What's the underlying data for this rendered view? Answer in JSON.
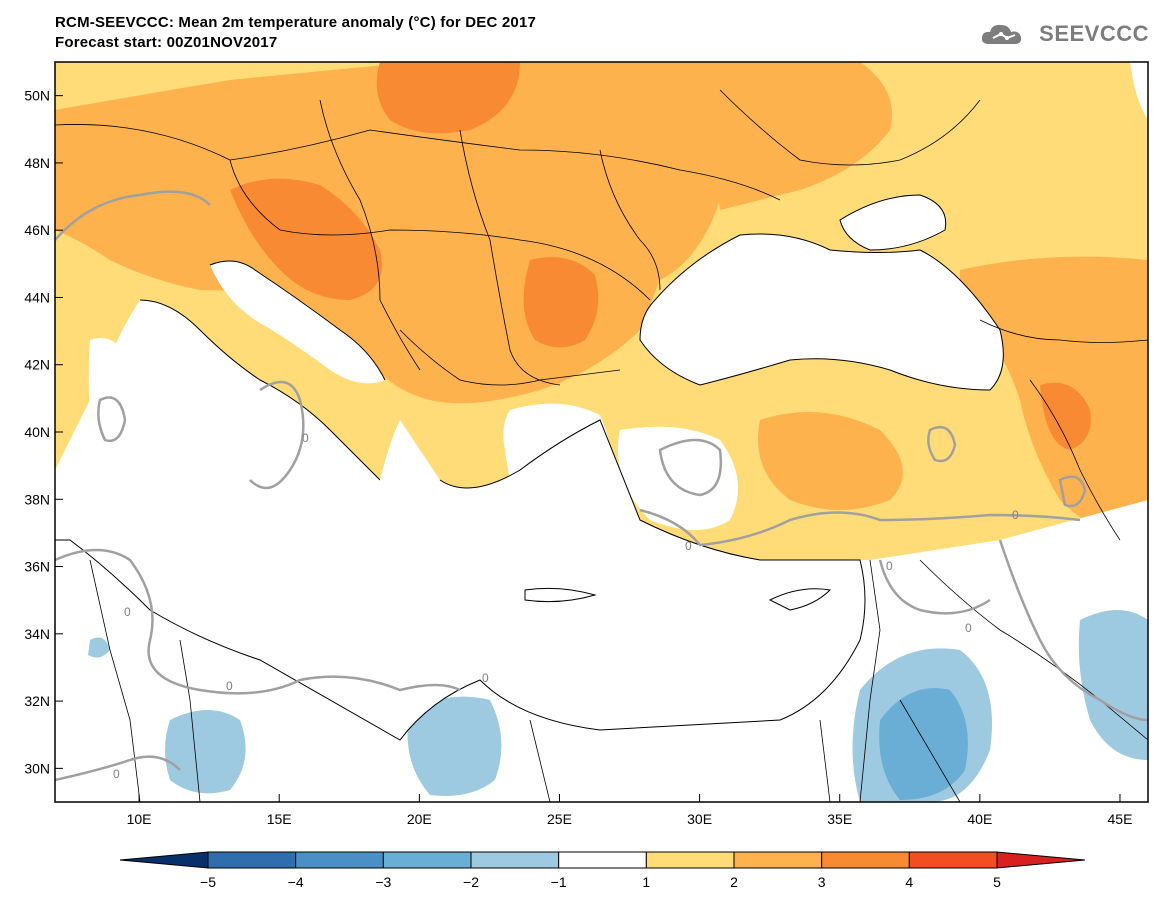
{
  "header": {
    "title_line1": "RCM-SEEVCCC: Mean 2m temperature anomaly (°C) for DEC 2017",
    "title_line2": "Forecast start: 00Z01NOV2017",
    "logo_text": "SEEVCCC"
  },
  "map": {
    "lon_range": [
      7,
      46
    ],
    "lat_range": [
      29,
      51
    ],
    "lat_ticks": [
      "50N",
      "48N",
      "46N",
      "44N",
      "42N",
      "40N",
      "38N",
      "36N",
      "34N",
      "32N",
      "30N"
    ],
    "lon_ticks": [
      "10E",
      "15E",
      "20E",
      "25E",
      "30E",
      "35E",
      "40E",
      "45E"
    ],
    "contour_label": "0",
    "sea_color": "#ffffff",
    "border_color": "#000000"
  },
  "colorbar": {
    "labels": [
      "−5",
      "−4",
      "−3",
      "−2",
      "−1",
      "1",
      "2",
      "3",
      "4",
      "5"
    ],
    "colors": [
      "#08306b",
      "#2f6ead",
      "#4a90c6",
      "#6aaed6",
      "#9ecae1",
      "#ffffff",
      "#ffdc78",
      "#fdb24e",
      "#f98a34",
      "#f24e22",
      "#d8201e"
    ]
  }
}
